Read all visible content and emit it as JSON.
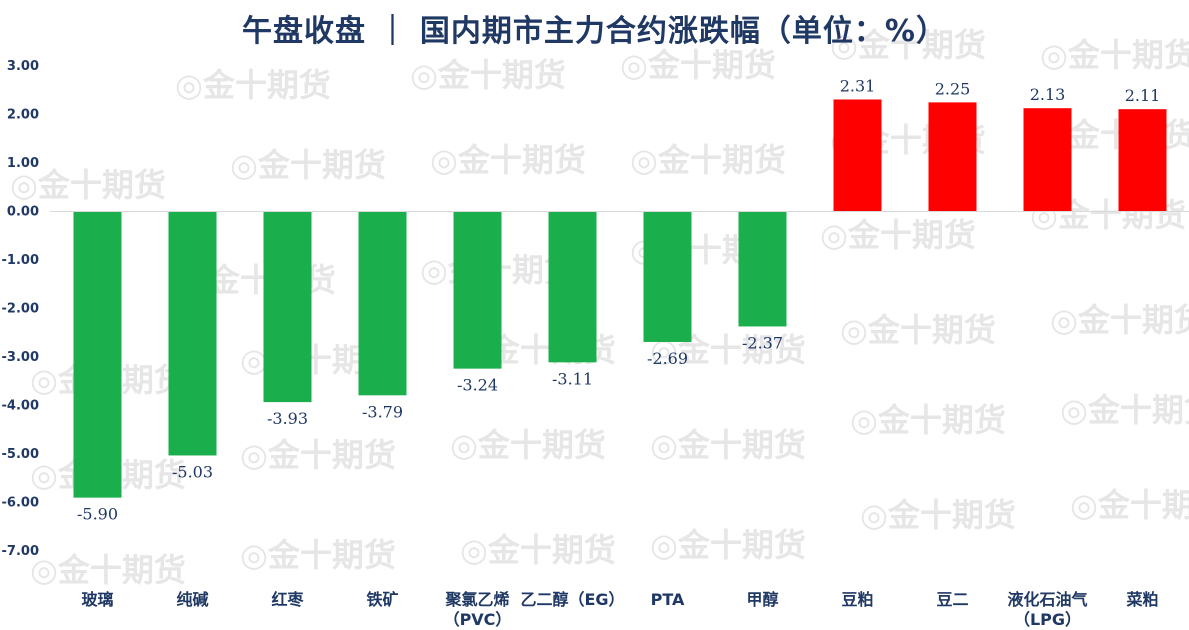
{
  "watermark": "金十期货",
  "colors": {
    "up": "#ff0000",
    "down": "#1aaf4c",
    "text": "#1f3864",
    "axis": "#1f3864"
  },
  "chart_data": {
    "type": "bar",
    "title": "午盘收盘 ｜ 国内期市主力合约涨跌幅（单位：%）",
    "xlabel": "",
    "ylabel": "",
    "ylim": [
      -7.0,
      3.0
    ],
    "y_ticks": [
      "3.00",
      "2.00",
      "1.00",
      "0.00",
      "-1.00",
      "-2.00",
      "-3.00",
      "-4.00",
      "-5.00",
      "-6.00",
      "-7.00"
    ],
    "grid": false,
    "categories": [
      "玻璃",
      "纯碱",
      "红枣",
      "铁矿",
      "聚氯乙烯\n（PVC）",
      "乙二醇（EG）",
      "PTA",
      "甲醇",
      "豆粕",
      "豆二",
      "液化石油气\n（LPG）",
      "菜粕"
    ],
    "values": [
      -5.9,
      -5.03,
      -3.93,
      -3.79,
      -3.24,
      -3.11,
      -2.69,
      -2.37,
      2.31,
      2.25,
      2.13,
      2.11
    ],
    "value_labels": [
      "-5.90",
      "-5.03",
      "-3.93",
      "-3.79",
      "-3.24",
      "-3.11",
      "-2.69",
      "-2.37",
      "2.31",
      "2.25",
      "2.13",
      "2.11"
    ]
  }
}
